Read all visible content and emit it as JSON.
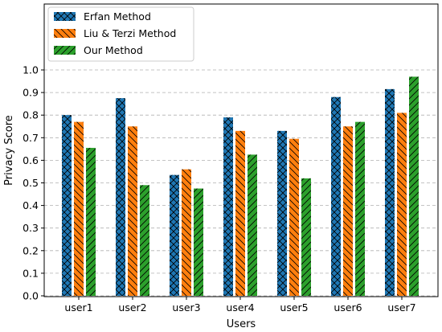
{
  "chart_data": {
    "type": "bar",
    "title": "",
    "xlabel": "Users",
    "ylabel": "Privacy Score",
    "ylim": [
      0,
      1.0
    ],
    "yticks": [
      "0.0",
      "0.1",
      "0.2",
      "0.3",
      "0.4",
      "0.5",
      "0.6",
      "0.7",
      "0.8",
      "0.9",
      "1.0"
    ],
    "grid": true,
    "legend_position": "top-left",
    "categories": [
      "user1",
      "user2",
      "user3",
      "user4",
      "user5",
      "user6",
      "user7"
    ],
    "series": [
      {
        "name": "Erfan Method",
        "color": "#1f77b4",
        "hatch": "crosshatch",
        "values": [
          0.8,
          0.875,
          0.535,
          0.79,
          0.73,
          0.88,
          0.915
        ]
      },
      {
        "name": "Liu & Terzi Method",
        "color": "#ff7f0e",
        "hatch": "backslash",
        "values": [
          0.77,
          0.75,
          0.56,
          0.73,
          0.695,
          0.75,
          0.81
        ]
      },
      {
        "name": "Our Method",
        "color": "#2ca02c",
        "hatch": "slash",
        "values": [
          0.655,
          0.49,
          0.475,
          0.625,
          0.52,
          0.77,
          0.97
        ]
      }
    ]
  }
}
